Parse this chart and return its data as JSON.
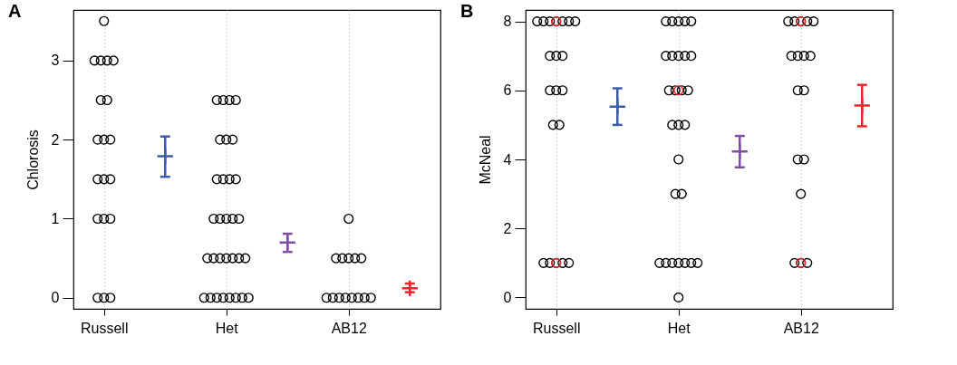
{
  "chart_data": [
    {
      "type": "scatter",
      "title": "A",
      "ylabel": "Chlorosis",
      "categories": [
        "Russell",
        null,
        "Het",
        null,
        "AB12",
        null
      ],
      "ylim": [
        -0.14,
        3.64
      ],
      "yticks": [
        0,
        1,
        2,
        3
      ],
      "grid": "x",
      "marker": "circle",
      "series": [
        {
          "color": "#000000",
          "x": [
            "Russell",
            "Russell",
            "Russell",
            "Russell",
            "Russell",
            "Russell",
            "Russell",
            "Russell",
            "Russell",
            "Russell",
            "Russell",
            "Russell",
            "Russell",
            "Russell",
            "Russell",
            "Russell",
            "Russell",
            "Russell",
            "Russell",
            "Het",
            "Het",
            "Het",
            "Het",
            "Het",
            "Het",
            "Het",
            "Het",
            "Het",
            "Het",
            "Het",
            "Het",
            "Het",
            "Het",
            "Het",
            "Het",
            "Het",
            "Het",
            "Het",
            "Het",
            "Het",
            "Het",
            "Het",
            "Het",
            "Het",
            "Het",
            "Het",
            "Het",
            "Het",
            "Het",
            "Het",
            "AB12",
            "AB12",
            "AB12",
            "AB12",
            "AB12",
            "AB12",
            "AB12",
            "AB12",
            "AB12",
            "AB12",
            "AB12",
            "AB12",
            "AB12",
            "AB12"
          ],
          "values": [
            3.5,
            3,
            3,
            3,
            3,
            2.5,
            2.5,
            2,
            2,
            2,
            1.5,
            1.5,
            1.5,
            1,
            1,
            1,
            0,
            0,
            0,
            2.5,
            2.5,
            2.5,
            2.5,
            2,
            2,
            2,
            1.5,
            1.5,
            1.5,
            1.5,
            1,
            1,
            1,
            1,
            1,
            0.5,
            0.5,
            0.5,
            0.5,
            0.5,
            0.5,
            0.5,
            0,
            0,
            0,
            0,
            0,
            0,
            0,
            0,
            1,
            0.5,
            0.5,
            0.5,
            0.5,
            0.5,
            0,
            0,
            0,
            0,
            0,
            0,
            0,
            0
          ]
        },
        {
          "marker": "cross",
          "colors": [
            null,
            "#3b5ba5",
            null,
            "#7e4fa5",
            null,
            "#e8262b"
          ],
          "values": [
            null,
            1.79,
            null,
            0.7,
            null,
            0.12
          ],
          "errors": [
            null,
            [
              1.53,
              2.04
            ],
            null,
            [
              0.58,
              0.81
            ],
            null,
            [
              0.07,
              0.18
            ]
          ]
        }
      ]
    },
    {
      "type": "scatter",
      "title": "B",
      "ylabel": "McNeal",
      "categories": [
        "Russell",
        null,
        "Het",
        null,
        "AB12",
        null
      ],
      "ylim": [
        -0.33,
        8.33
      ],
      "yticks": [
        0,
        2,
        4,
        6,
        8
      ],
      "grid": "x",
      "marker": "circle",
      "series": [
        {
          "color": "#000000",
          "x": [
            "Russell",
            "Russell",
            "Russell",
            "Russell",
            "Russell",
            "Russell",
            "Russell",
            "Russell",
            "Russell",
            "Russell",
            "Russell",
            "Russell",
            "Russell",
            "Russell",
            "Russell",
            "Russell",
            "Russell",
            "Russell",
            "Russell",
            "Russell",
            "Het",
            "Het",
            "Het",
            "Het",
            "Het",
            "Het",
            "Het",
            "Het",
            "Het",
            "Het",
            "Het",
            "Het",
            "Het",
            "Het",
            "Het",
            "Het",
            "Het",
            "Het",
            "Het",
            "Het",
            "Het",
            "Het",
            "Het",
            "Het",
            "Het",
            "Het",
            "Het",
            "Het",
            "AB12",
            "AB12",
            "AB12",
            "AB12",
            "AB12",
            "AB12",
            "AB12",
            "AB12",
            "AB12",
            "AB12",
            "AB12",
            "AB12",
            "AB12",
            "AB12",
            "AB12",
            "AB12",
            "AB12"
          ],
          "values": [
            8,
            8,
            8,
            8,
            8,
            8,
            8,
            7,
            7,
            7,
            6,
            6,
            6,
            5,
            5,
            1,
            1,
            1,
            1,
            1,
            8,
            8,
            8,
            8,
            8,
            7,
            7,
            7,
            7,
            7,
            6,
            6,
            6,
            6,
            5,
            5,
            5,
            4,
            3,
            3,
            1,
            1,
            1,
            1,
            1,
            1,
            1,
            0,
            8,
            8,
            8,
            8,
            8,
            7,
            7,
            7,
            7,
            6,
            6,
            4,
            4,
            3,
            1,
            1,
            1
          ]
        },
        {
          "color": "#e8262b",
          "x": [
            "Russell",
            "Russell",
            "Het",
            "AB12",
            "AB12"
          ],
          "values": [
            8,
            1,
            6,
            8,
            1
          ]
        },
        {
          "marker": "cross",
          "colors": [
            null,
            "#3b5ba5",
            null,
            "#7e4fa5",
            null,
            "#e8262b"
          ],
          "values": [
            null,
            5.53,
            null,
            4.23,
            null,
            5.56
          ],
          "errors": [
            null,
            [
              5.0,
              6.06
            ],
            null,
            [
              3.77,
              4.68
            ],
            null,
            [
              4.96,
              6.16
            ]
          ]
        }
      ]
    }
  ]
}
